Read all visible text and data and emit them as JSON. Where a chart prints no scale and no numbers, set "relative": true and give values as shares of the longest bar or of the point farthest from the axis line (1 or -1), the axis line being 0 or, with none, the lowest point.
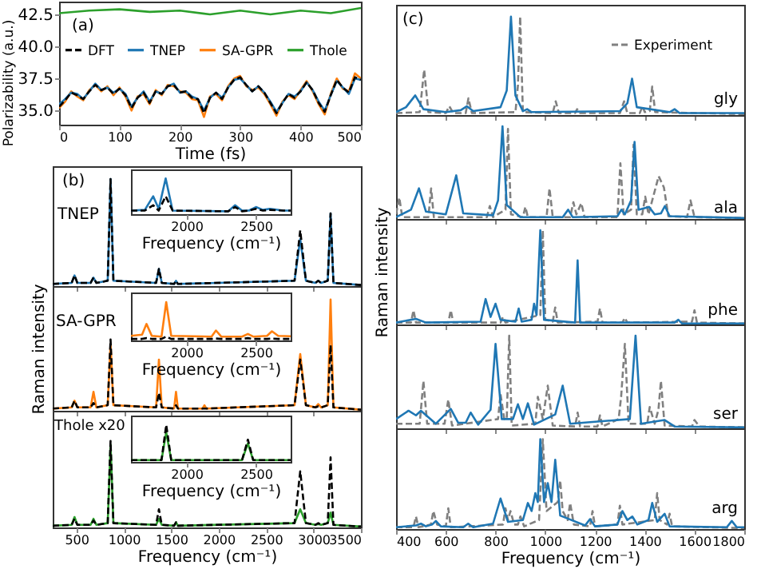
{
  "chart_data": [
    {
      "type": "line",
      "xlabel": "Time (fs)",
      "ylabel": "Polarizability (a.u.)",
      "xlim": [
        0,
        500
      ],
      "xticks": [
        0,
        100,
        200,
        300,
        400,
        500
      ],
      "ylim": [
        33.9,
        43.5
      ],
      "yticks": [
        {
          "value": 35,
          "label": "35.0"
        },
        37.5,
        {
          "value": 40,
          "label": "40.0"
        },
        42.5
      ],
      "legend": "center",
      "annotations": [
        "(a)"
      ],
      "x": [
        0,
        10,
        20,
        30,
        40,
        50,
        60,
        70,
        80,
        90,
        100,
        110,
        120,
        130,
        140,
        150,
        160,
        170,
        180,
        190,
        200,
        210,
        220,
        230,
        240,
        250,
        260,
        270,
        280,
        290,
        300,
        310,
        320,
        330,
        340,
        350,
        360,
        370,
        380,
        390,
        400,
        410,
        420,
        430,
        440,
        450,
        460,
        470,
        480,
        490,
        500
      ],
      "series": [
        {
          "name": "DFT",
          "color": "#000000",
          "line_style": "dashed",
          "values": [
            35.3,
            35.8,
            36.4,
            36.2,
            35.9,
            36.5,
            37.0,
            36.6,
            36.8,
            36.3,
            36.7,
            36.2,
            35.2,
            36.0,
            36.4,
            35.6,
            36.5,
            36.3,
            36.9,
            37.0,
            36.4,
            36.5,
            36.0,
            35.9,
            34.8,
            36.0,
            36.4,
            35.9,
            36.8,
            37.4,
            37.6,
            37.0,
            36.5,
            36.9,
            36.4,
            35.6,
            34.8,
            35.6,
            36.3,
            36.0,
            36.5,
            37.2,
            36.6,
            35.6,
            34.9,
            36.2,
            37.4,
            36.8,
            36.4,
            37.6,
            37.4
          ]
        },
        {
          "name": "TNEP",
          "color": "#1f77b4",
          "values": [
            35.5,
            35.9,
            36.4,
            36.3,
            35.9,
            36.5,
            37.1,
            36.6,
            36.8,
            36.4,
            36.7,
            36.3,
            35.3,
            36.0,
            36.5,
            35.7,
            36.5,
            36.3,
            36.9,
            37.1,
            36.4,
            36.5,
            36.1,
            35.9,
            35.0,
            36.0,
            36.4,
            36.0,
            36.8,
            37.4,
            37.5,
            37.0,
            36.5,
            36.9,
            36.4,
            35.7,
            34.9,
            35.6,
            36.3,
            36.1,
            36.5,
            37.2,
            36.6,
            35.7,
            35.0,
            36.2,
            37.3,
            36.8,
            36.3,
            37.5,
            37.4
          ]
        },
        {
          "name": "SA-GPR",
          "color": "#ff7f0e",
          "values": [
            35.2,
            35.7,
            36.5,
            36.1,
            35.8,
            36.6,
            37.0,
            36.5,
            36.9,
            36.2,
            36.8,
            36.1,
            35.0,
            36.1,
            36.3,
            35.5,
            36.6,
            36.2,
            37.0,
            36.9,
            36.5,
            36.4,
            35.9,
            35.8,
            34.5,
            36.1,
            36.3,
            35.8,
            36.9,
            37.5,
            37.7,
            36.9,
            36.6,
            36.8,
            36.3,
            35.5,
            34.6,
            35.7,
            36.2,
            35.9,
            36.6,
            37.3,
            36.5,
            35.5,
            34.7,
            36.3,
            37.5,
            36.7,
            36.5,
            37.9,
            37.5
          ]
        },
        {
          "name": "Thole",
          "color": "#2ca02c",
          "x": [
            0,
            50,
            100,
            150,
            200,
            250,
            300,
            350,
            400,
            450,
            500
          ],
          "values": [
            42.6,
            42.8,
            42.9,
            42.7,
            42.8,
            42.5,
            42.8,
            42.5,
            42.8,
            42.6,
            43.0
          ]
        }
      ]
    },
    {
      "type": "line",
      "relative": true,
      "xlim": [
        250,
        3500
      ],
      "xticks": [
        500,
        1000,
        1500,
        2000,
        2500,
        3000,
        3500
      ],
      "tick_labels": false,
      "annotations": [
        "(b)",
        "TNEP"
      ],
      "x": [
        250,
        450,
        480,
        510,
        650,
        680,
        710,
        830,
        860,
        890,
        1340,
        1370,
        1400,
        1530,
        1550,
        1570,
        2800,
        2860,
        2920,
        3020,
        3050,
        3080,
        3150,
        3180,
        3210,
        3500
      ],
      "series": [
        {
          "color": "#000000",
          "line_style": "dashed",
          "values": [
            0.02,
            0.03,
            0.1,
            0.03,
            0.03,
            0.08,
            0.03,
            0.05,
            1,
            0.05,
            0.03,
            0.16,
            0.03,
            0.02,
            0.05,
            0.02,
            0.05,
            0.52,
            0.05,
            0.03,
            0.05,
            0.03,
            0.05,
            0.68,
            0.03,
            0.01
          ]
        },
        {
          "color": "#1f77b4",
          "values": [
            0.02,
            0.03,
            0.1,
            0.03,
            0.03,
            0.08,
            0.03,
            0.05,
            1,
            0.05,
            0.03,
            0.16,
            0.03,
            0.02,
            0.05,
            0.02,
            0.05,
            0.44,
            0.05,
            0.03,
            0.05,
            0.03,
            0.05,
            0.68,
            0.03,
            0.01
          ]
        }
      ]
    },
    {
      "type": "line",
      "relative": true,
      "xlim": [
        1600,
        2750
      ],
      "xticks": [
        2000,
        2500
      ],
      "xlabel": "Frequency (cm⁻¹)",
      "x": [
        1600,
        1700,
        1760,
        1800,
        1850,
        1900,
        2300,
        2350,
        2400,
        2450,
        2500,
        2550,
        2600,
        2700,
        2750
      ],
      "series": [
        {
          "color": "#000000",
          "line_style": "dashed",
          "values": [
            0.1,
            0.1,
            0.25,
            0.1,
            0.5,
            0.1,
            0.08,
            0.2,
            0.08,
            0.1,
            0.15,
            0.1,
            0.12,
            0.1,
            0.1
          ]
        },
        {
          "color": "#1f77b4",
          "values": [
            0.1,
            0.12,
            0.5,
            0.15,
            1,
            0.1,
            0.08,
            0.25,
            0.1,
            0.1,
            0.2,
            0.12,
            0.15,
            0.1,
            0.1
          ]
        }
      ]
    },
    {
      "type": "line",
      "relative": true,
      "xlim": [
        250,
        3500
      ],
      "xticks": [
        500,
        1000,
        1500,
        2000,
        2500,
        3000,
        3500
      ],
      "tick_labels": false,
      "ylabel": "Raman intensity",
      "annotations": [
        "SA-GPR"
      ],
      "x": [
        250,
        450,
        480,
        510,
        650,
        680,
        710,
        830,
        860,
        890,
        1340,
        1370,
        1400,
        1530,
        1550,
        1570,
        1830,
        1850,
        1870,
        2800,
        2860,
        2920,
        3020,
        3050,
        3080,
        3150,
        3180,
        3210,
        3500
      ],
      "series": [
        {
          "color": "#000000",
          "line_style": "dashed",
          "values": [
            0.02,
            0.03,
            0.09,
            0.03,
            0.03,
            0.07,
            0.03,
            0.05,
            0.64,
            0.05,
            0.03,
            0.16,
            0.03,
            0.02,
            0.05,
            0.02,
            0.02,
            0.02,
            0.02,
            0.05,
            0.46,
            0.05,
            0.03,
            0.04,
            0.03,
            0.05,
            0.59,
            0.03,
            0.01
          ]
        },
        {
          "color": "#ff7f0e",
          "values": [
            0.02,
            0.03,
            0.09,
            0.03,
            0.03,
            0.17,
            0.03,
            0.05,
            0.6,
            0.05,
            0.03,
            0.46,
            0.03,
            0.02,
            0.17,
            0.02,
            0.02,
            0.05,
            0.02,
            0.05,
            0.51,
            0.05,
            0.03,
            0.06,
            0.03,
            0.05,
            1,
            0.03,
            0.01
          ]
        }
      ]
    },
    {
      "type": "line",
      "relative": true,
      "xlim": [
        1600,
        2750
      ],
      "xticks": [
        2000,
        2500
      ],
      "xlabel": "Frequency (cm⁻¹)",
      "x": [
        1600,
        1680,
        1712,
        1750,
        1820,
        1854,
        1890,
        2180,
        2212,
        2250,
        2400,
        2442,
        2480,
        2580,
        2615,
        2660,
        2750
      ],
      "series": [
        {
          "color": "#000000",
          "line_style": "dashed",
          "values": [
            0.04,
            0.04,
            0.06,
            0.04,
            0.04,
            0.1,
            0.04,
            0.04,
            0.05,
            0.04,
            0.04,
            0.06,
            0.04,
            0.04,
            0.05,
            0.04,
            0.04
          ]
        },
        {
          "color": "#ff7f0e",
          "values": [
            0.12,
            0.15,
            0.43,
            0.12,
            0.1,
            1,
            0.12,
            0.1,
            0.26,
            0.1,
            0.1,
            0.17,
            0.1,
            0.12,
            0.24,
            0.12,
            0.11
          ]
        }
      ]
    },
    {
      "type": "line",
      "relative": true,
      "xlim": [
        250,
        3500
      ],
      "xticks": [
        500,
        1000,
        1500,
        2000,
        2500,
        3000,
        3500
      ],
      "xlabel": "Frequency (cm⁻¹)",
      "tick_labels": "x",
      "annotations": [
        "Thole x20"
      ],
      "x": [
        250,
        450,
        480,
        510,
        650,
        680,
        710,
        830,
        860,
        890,
        1340,
        1370,
        1400,
        1530,
        1550,
        1570,
        2800,
        2860,
        2920,
        3020,
        3050,
        3080,
        3150,
        3180,
        3210,
        3500
      ],
      "series": [
        {
          "color": "#000000",
          "line_style": "dashed",
          "values": [
            0.02,
            0.03,
            0.1,
            0.03,
            0.03,
            0.08,
            0.03,
            0.05,
            1,
            0.05,
            0.03,
            0.21,
            0.03,
            0.02,
            0.06,
            0.02,
            0.05,
            0.65,
            0.05,
            0.03,
            0.05,
            0.03,
            0.05,
            0.81,
            0.03,
            0.01
          ]
        },
        {
          "color": "#2ca02c",
          "values": [
            0.02,
            0.03,
            0.12,
            0.03,
            0.03,
            0.1,
            0.03,
            0.05,
            0.96,
            0.05,
            0.03,
            0.1,
            0.03,
            0.02,
            0.06,
            0.02,
            0.05,
            0.21,
            0.05,
            0.03,
            0.04,
            0.03,
            0.05,
            0.17,
            0.03,
            0.01
          ]
        }
      ]
    },
    {
      "type": "line",
      "relative": true,
      "xlim": [
        1600,
        2750
      ],
      "xticks": [
        2000,
        2500
      ],
      "xlabel": "Frequency (cm⁻¹)",
      "x": [
        1600,
        1820,
        1854,
        1890,
        2400,
        2442,
        2480,
        2750
      ],
      "series": [
        {
          "color": "#000000",
          "line_style": "dashed",
          "values": [
            0.05,
            0.05,
            1,
            0.05,
            0.05,
            0.6,
            0.05,
            0.05
          ]
        },
        {
          "color": "#2ca02c",
          "values": [
            0.05,
            0.05,
            0.8,
            0.05,
            0.05,
            0.5,
            0.05,
            0.05
          ]
        }
      ]
    },
    {
      "type": "line",
      "relative": true,
      "xlim": [
        400,
        1800
      ],
      "xticks": [
        400,
        600,
        800,
        1000,
        1200,
        1400,
        1600,
        1800
      ],
      "tick_labels": false,
      "legend": "top right",
      "annotations": [
        "(c)",
        "gly"
      ],
      "series": [
        {
          "color": "#1f77b4",
          "x": [
            400,
            440,
            477,
            510,
            600,
            660,
            685,
            710,
            820,
            845,
            862,
            880,
            910,
            927,
            945,
            1300,
            1330,
            1349,
            1368,
            1500,
            1520,
            1540,
            1800
          ],
          "values": [
            0.03,
            0.08,
            0.2,
            0.06,
            0.03,
            0.05,
            0.09,
            0.04,
            0.08,
            0.25,
            1,
            0.2,
            0.04,
            0.06,
            0.03,
            0.04,
            0.12,
            0.37,
            0.08,
            0.03,
            0.06,
            0.02,
            0.02
          ]
        },
        {
          "name": "Experiment",
          "color": "#808080",
          "line_style": "dashed",
          "x": [
            400,
            495,
            513,
            530,
            600,
            614,
            630,
            680,
            691,
            705,
            880,
            890,
            899,
            910,
            1030,
            1042,
            1055,
            1120,
            1128,
            1140,
            1300,
            1317,
            1330,
            1380,
            1391,
            1400,
            1420,
            1430,
            1442,
            1800
          ],
          "values": [
            0.02,
            0.03,
            0.46,
            0.03,
            0.02,
            0.09,
            0.02,
            0.02,
            0.17,
            0.02,
            0.03,
            0.3,
            1,
            0.03,
            0.02,
            0.14,
            0.02,
            0.02,
            0.06,
            0.02,
            0.02,
            0.14,
            0.02,
            0.02,
            0.09,
            0.03,
            0.04,
            0.29,
            0.03,
            0.01
          ]
        }
      ]
    },
    {
      "type": "line",
      "relative": true,
      "xlim": [
        400,
        1800
      ],
      "xticks": [
        400,
        600,
        800,
        1000,
        1200,
        1400,
        1600,
        1800
      ],
      "tick_labels": false,
      "annotations": [
        "ala"
      ],
      "series": [
        {
          "color": "#1f77b4",
          "x": [
            400,
            460,
            492,
            520,
            600,
            642,
            670,
            790,
            810,
            828,
            845,
            900,
            1070,
            1092,
            1110,
            1290,
            1306,
            1320,
            1345,
            1359,
            1375,
            1417,
            1440,
            1465,
            1481,
            1500,
            1800
          ],
          "values": [
            0.02,
            0.1,
            0.33,
            0.08,
            0.05,
            0.47,
            0.06,
            0.04,
            0.2,
            1,
            0.15,
            0.02,
            0.02,
            0.1,
            0.02,
            0.03,
            0.1,
            0.05,
            0.2,
            0.83,
            0.1,
            0.13,
            0.05,
            0.06,
            0.14,
            0.03,
            0.01
          ]
        },
        {
          "color": "#808080",
          "line_style": "dashed",
          "x": [
            400,
            413,
            425,
            530,
            541,
            552,
            765,
            777,
            790,
            840,
            850,
            862,
            910,
            920,
            930,
            1005,
            1017,
            1030,
            1100,
            1113,
            1125,
            1145,
            1158,
            1290,
            1302,
            1315,
            1345,
            1355,
            1368,
            1390,
            1402,
            1415,
            1456,
            1477,
            1495,
            1570,
            1584,
            1600,
            1800
          ],
          "values": [
            0.05,
            0.23,
            0.02,
            0.02,
            0.33,
            0.02,
            0.02,
            0.14,
            0.02,
            0.1,
            0.97,
            0.05,
            0.02,
            0.13,
            0.02,
            0.02,
            0.33,
            0.02,
            0.02,
            0.18,
            0.05,
            0.17,
            0.02,
            0.02,
            0.6,
            0.05,
            0.1,
            0.8,
            0.05,
            0.05,
            0.24,
            0.05,
            0.46,
            0.34,
            0.03,
            0.02,
            0.2,
            0.02,
            0.01
          ]
        }
      ]
    },
    {
      "type": "line",
      "relative": true,
      "xlim": [
        400,
        1800
      ],
      "xticks": [
        400,
        600,
        800,
        1000,
        1200,
        1400,
        1600,
        1800
      ],
      "tick_labels": false,
      "ylabel": "Raman intensity",
      "annotations": [
        "phe"
      ],
      "series": [
        {
          "color": "#1f77b4",
          "x": [
            400,
            480,
            520,
            740,
            760,
            780,
            800,
            820,
            880,
            893,
            905,
            945,
            955,
            965,
            980,
            995,
            1120,
            1130,
            1140,
            1520,
            1535,
            1550,
            1800
          ],
          "values": [
            0.02,
            0.06,
            0.02,
            0.03,
            0.27,
            0.08,
            0.22,
            0.05,
            0.03,
            0.17,
            0.03,
            0.05,
            0.22,
            0.1,
            1,
            0.05,
            0.02,
            0.68,
            0.02,
            0.02,
            0.05,
            0.01,
            0.01
          ]
        },
        {
          "color": "#808080",
          "line_style": "dashed",
          "x": [
            400,
            460,
            470,
            480,
            610,
            620,
            630,
            820,
            830,
            840,
            980,
            990,
            1000,
            1030,
            1040,
            1050,
            1210,
            1220,
            1230,
            1310,
            1320,
            1330,
            1590,
            1600,
            1610,
            1800
          ],
          "values": [
            0.02,
            0.02,
            0.15,
            0.02,
            0.02,
            0.15,
            0.02,
            0.02,
            0.08,
            0.02,
            0.1,
            1,
            0.05,
            0.03,
            0.18,
            0.02,
            0.03,
            0.17,
            0.02,
            0.02,
            0.07,
            0.02,
            0.03,
            0.15,
            0.02,
            0.01
          ]
        }
      ]
    },
    {
      "type": "line",
      "relative": true,
      "xlim": [
        400,
        1800
      ],
      "xticks": [
        400,
        600,
        800,
        1000,
        1200,
        1400,
        1600,
        1800
      ],
      "tick_labels": false,
      "annotations": [
        "ser"
      ],
      "series": [
        {
          "color": "#1f77b4",
          "x": [
            400,
            450,
            480,
            500,
            560,
            620,
            650,
            680,
            700,
            730,
            780,
            800,
            825,
            870,
            890,
            910,
            930,
            955,
            1040,
            1070,
            1100,
            1340,
            1363,
            1385,
            1480,
            1520,
            1800
          ],
          "values": [
            0.1,
            0.19,
            0.14,
            0.19,
            0.05,
            0.21,
            0.06,
            0.06,
            0.17,
            0.04,
            0.2,
            0.91,
            0.1,
            0.1,
            0.26,
            0.1,
            0.27,
            0.04,
            0.15,
            0.46,
            0.05,
            0.1,
            1,
            0.05,
            0.09,
            0.02,
            0.01
          ]
        },
        {
          "color": "#808080",
          "line_style": "dashed",
          "x": [
            400,
            495,
            510,
            525,
            595,
            610,
            625,
            810,
            820,
            835,
            845,
            855,
            865,
            960,
            970,
            990,
            1010,
            1030,
            1120,
            1130,
            1140,
            1210,
            1220,
            1230,
            1295,
            1305,
            1320,
            1335,
            1410,
            1420,
            1440,
            1455,
            1465,
            1480,
            1590,
            1600,
            1620,
            1800
          ],
          "values": [
            0.05,
            0.05,
            0.51,
            0.05,
            0.05,
            0.31,
            0.03,
            0.1,
            0.37,
            0.1,
            0.1,
            1,
            0.03,
            0.05,
            0.34,
            0.1,
            0.46,
            0.03,
            0.02,
            0.17,
            0.02,
            0.02,
            0.14,
            0.02,
            0.1,
            0.34,
            0.91,
            0.05,
            0.05,
            0.23,
            0.05,
            0.2,
            0.51,
            0.03,
            0.02,
            0.09,
            0.02,
            0.01
          ]
        }
      ]
    },
    {
      "type": "line",
      "relative": true,
      "xlim": [
        400,
        1800
      ],
      "xticks": [
        400,
        600,
        800,
        1000,
        1200,
        1400,
        1600,
        1800
      ],
      "xlabel": "Frequency (cm⁻¹)",
      "tick_labels": "x",
      "annotations": [
        "arg"
      ],
      "series": [
        {
          "color": "#1f77b4",
          "x": [
            400,
            480,
            500,
            520,
            545,
            560,
            580,
            670,
            690,
            710,
            790,
            820,
            850,
            910,
            930,
            945,
            960,
            970,
            980,
            995,
            1010,
            1025,
            1040,
            1060,
            1160,
            1180,
            1200,
            1290,
            1310,
            1330,
            1350,
            1370,
            1415,
            1430,
            1450,
            1480,
            1500,
            1730,
            1750,
            1770,
            1800
          ],
          "values": [
            0.02,
            0.04,
            0.06,
            0.03,
            0.05,
            0.09,
            0.03,
            0.02,
            0.06,
            0.02,
            0.06,
            0.34,
            0.08,
            0.1,
            0.29,
            0.2,
            0.4,
            0.3,
            1,
            0.3,
            0.51,
            0.3,
            0.77,
            0.15,
            0.04,
            0.11,
            0.03,
            0.05,
            0.2,
            0.1,
            0.14,
            0.05,
            0.1,
            0.29,
            0.08,
            0.17,
            0.03,
            0.02,
            0.09,
            0.02,
            0.02
          ]
        },
        {
          "color": "#808080",
          "line_style": "dashed",
          "x": [
            400,
            470,
            480,
            490,
            540,
            550,
            565,
            600,
            610,
            620,
            830,
            840,
            850,
            860,
            875,
            890,
            900,
            915,
            975,
            990,
            1005,
            1050,
            1060,
            1070,
            1090,
            1100,
            1115,
            1180,
            1190,
            1200,
            1290,
            1300,
            1310,
            1440,
            1450,
            1460,
            1490,
            1500,
            1510,
            1800
          ],
          "values": [
            0.02,
            0.02,
            0.14,
            0.02,
            0.05,
            0.2,
            0.05,
            0.03,
            0.23,
            0.02,
            0.05,
            0.23,
            0.1,
            0.2,
            0.05,
            0.05,
            0.14,
            0.03,
            0.1,
            1,
            0.2,
            0.3,
            0.54,
            0.2,
            0.1,
            0.29,
            0.05,
            0.03,
            0.2,
            0.03,
            0.05,
            0.26,
            0.05,
            0.1,
            0.4,
            0.1,
            0.05,
            0.17,
            0.03,
            0.01
          ]
        }
      ]
    }
  ]
}
